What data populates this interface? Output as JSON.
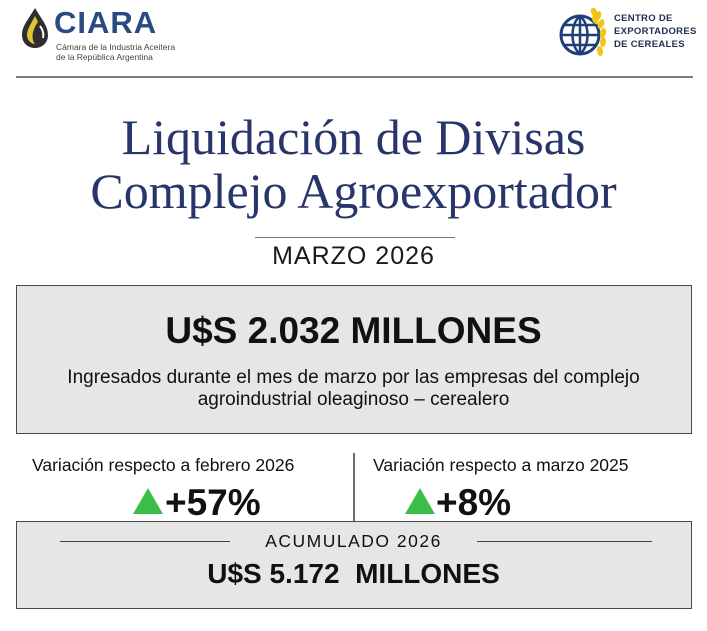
{
  "header": {
    "ciara": {
      "name": "CIARA",
      "subtitle_line1": "Cámara de la Industria Aceitera",
      "subtitle_line2": "de la República Argentina"
    },
    "cec": {
      "line1": "CENTRO DE",
      "line2": "EXPORTADORES",
      "line3": "DE CEREALES"
    }
  },
  "title": {
    "line1": "Liquidación de Divisas",
    "line2": "Complejo Agroexportador",
    "month": "MARZO 2026"
  },
  "main": {
    "amount": "U$S 2.032 MILLONES",
    "description": "Ingresados durante el mes de marzo por las empresas del complejo agroindustrial oleaginoso – cerealero"
  },
  "variations": [
    {
      "label": "Variación respecto a febrero 2026",
      "value": "+57%",
      "direction": "up"
    },
    {
      "label": "Variación respecto a marzo 2025",
      "value": "+8%",
      "direction": "up"
    }
  ],
  "accumulated": {
    "label": "ACUMULADO 2026",
    "amount": "U$S 5.172  MILLONES"
  },
  "colors": {
    "title": "#27356a",
    "ciara_blue": "#2b4a82",
    "up_arrow": "#3cbf4a",
    "box_bg": "#e6e6e6"
  }
}
